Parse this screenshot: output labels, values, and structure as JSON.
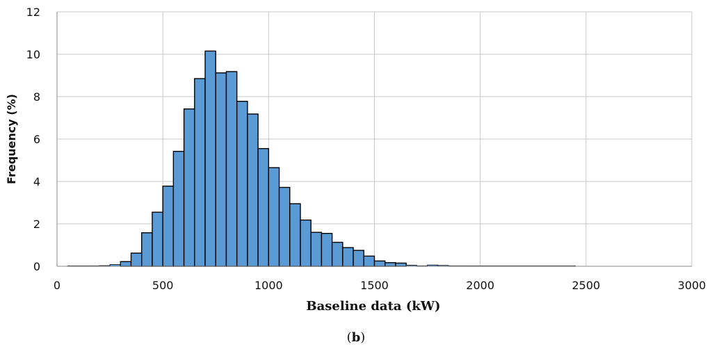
{
  "chart_data": {
    "type": "bar",
    "xlabel": "Baseline data (kW)",
    "ylabel": "Frequency (%)",
    "caption_open": "(",
    "caption_letter": "b",
    "caption_close": ")",
    "xlim": [
      0,
      3000
    ],
    "ylim": [
      0,
      12
    ],
    "xticks": [
      0,
      500,
      1000,
      1500,
      2000,
      2500,
      3000
    ],
    "yticks": [
      0,
      2,
      4,
      6,
      8,
      10,
      12
    ],
    "grid": true,
    "bar_color": "#5b9bd5",
    "bin_width": 50,
    "bins_start": [
      50,
      100,
      150,
      200,
      250,
      300,
      350,
      400,
      450,
      500,
      550,
      600,
      650,
      700,
      750,
      800,
      850,
      900,
      950,
      1000,
      1050,
      1100,
      1150,
      1200,
      1250,
      1300,
      1350,
      1400,
      1450,
      1500,
      1550,
      1600,
      1650,
      1700,
      1750,
      1800,
      1850,
      1900,
      1950,
      2000,
      2050,
      2100,
      2150,
      2200,
      2250,
      2300,
      2350,
      2400
    ],
    "values": [
      0.01,
      0.01,
      0.02,
      0.03,
      0.08,
      0.22,
      0.62,
      1.58,
      2.55,
      3.78,
      5.42,
      7.42,
      8.85,
      10.15,
      9.12,
      9.18,
      7.78,
      7.18,
      5.55,
      4.65,
      3.72,
      2.95,
      2.18,
      1.6,
      1.55,
      1.13,
      0.88,
      0.75,
      0.48,
      0.25,
      0.17,
      0.15,
      0.05,
      0.02,
      0.06,
      0.04,
      0.02,
      0.02,
      0.01,
      0.01,
      0.01,
      0.01,
      0.01,
      0.01,
      0.01,
      0.01,
      0.01,
      0.01
    ]
  }
}
